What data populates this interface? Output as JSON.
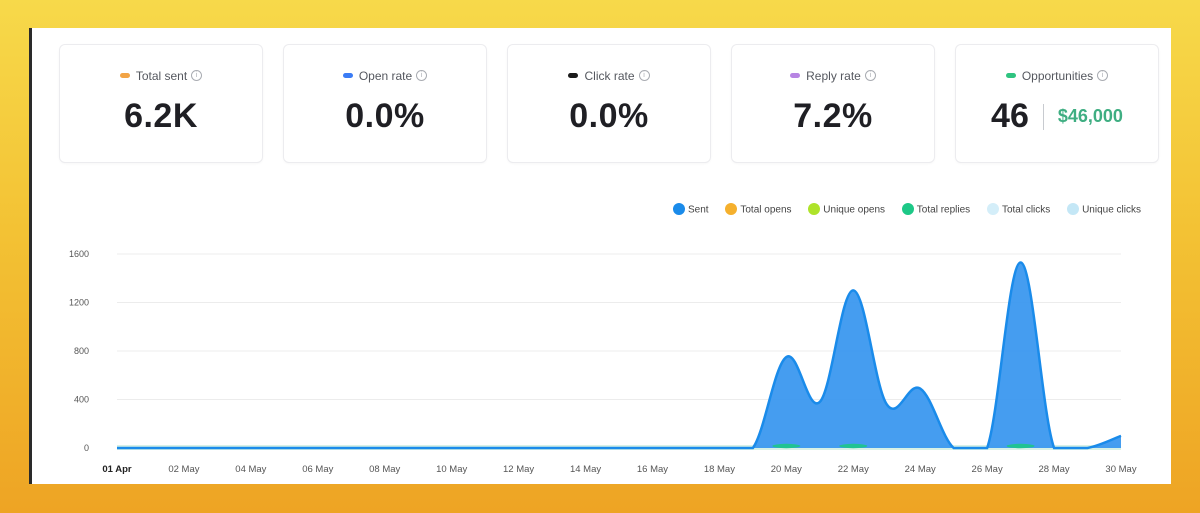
{
  "cards": [
    {
      "label": "Total sent",
      "value": "6.2K",
      "color": "#f2a446"
    },
    {
      "label": "Open rate",
      "value": "0.0%",
      "color": "#3b7cf5"
    },
    {
      "label": "Click rate",
      "value": "0.0%",
      "color": "#1b1b1b"
    },
    {
      "label": "Reply rate",
      "value": "7.2%",
      "color": "#b784e3"
    },
    {
      "label": "Opportunities",
      "value": "46",
      "money": "$46,000",
      "color": "#2fc480"
    }
  ],
  "info_glyph": "i",
  "chart_data": {
    "type": "area",
    "legend": [
      {
        "name": "Sent",
        "color": "#1a8bea"
      },
      {
        "name": "Total opens",
        "color": "#f5b02d"
      },
      {
        "name": "Unique opens",
        "color": "#aee32a"
      },
      {
        "name": "Total replies",
        "color": "#1dc887"
      },
      {
        "name": "Total clicks",
        "color": "#d4eef9"
      },
      {
        "name": "Unique clicks",
        "color": "#c4e7f6"
      }
    ],
    "y_ticks": [
      "1600",
      "1200",
      "800",
      "400",
      "0"
    ],
    "ylim": [
      0,
      1600
    ],
    "x_ticks": [
      "01 Apr",
      "02 May",
      "04 May",
      "06 May",
      "08 May",
      "10 May",
      "12 May",
      "14 May",
      "16 May",
      "18 May",
      "20 May",
      "22 May",
      "24 May",
      "26 May",
      "28 May",
      "30 May"
    ],
    "series": [
      {
        "name": "Sent",
        "color": "#1a8bea",
        "x": [
          "01 Apr",
          "02 May",
          "04 May",
          "06 May",
          "08 May",
          "10 May",
          "12 May",
          "14 May",
          "16 May",
          "18 May",
          "19 May",
          "20 May",
          "21 May",
          "22 May",
          "23 May",
          "24 May",
          "25 May",
          "26 May",
          "27 May",
          "28 May",
          "29 May",
          "30 May"
        ],
        "y": [
          0,
          0,
          0,
          0,
          0,
          0,
          0,
          0,
          0,
          0,
          0,
          750,
          380,
          1300,
          360,
          490,
          0,
          0,
          1530,
          0,
          0,
          100
        ]
      },
      {
        "name": "Total replies",
        "color": "#1dc887",
        "x": [
          "20 May",
          "22 May",
          "27 May"
        ],
        "y": [
          15,
          30,
          25
        ]
      }
    ]
  }
}
